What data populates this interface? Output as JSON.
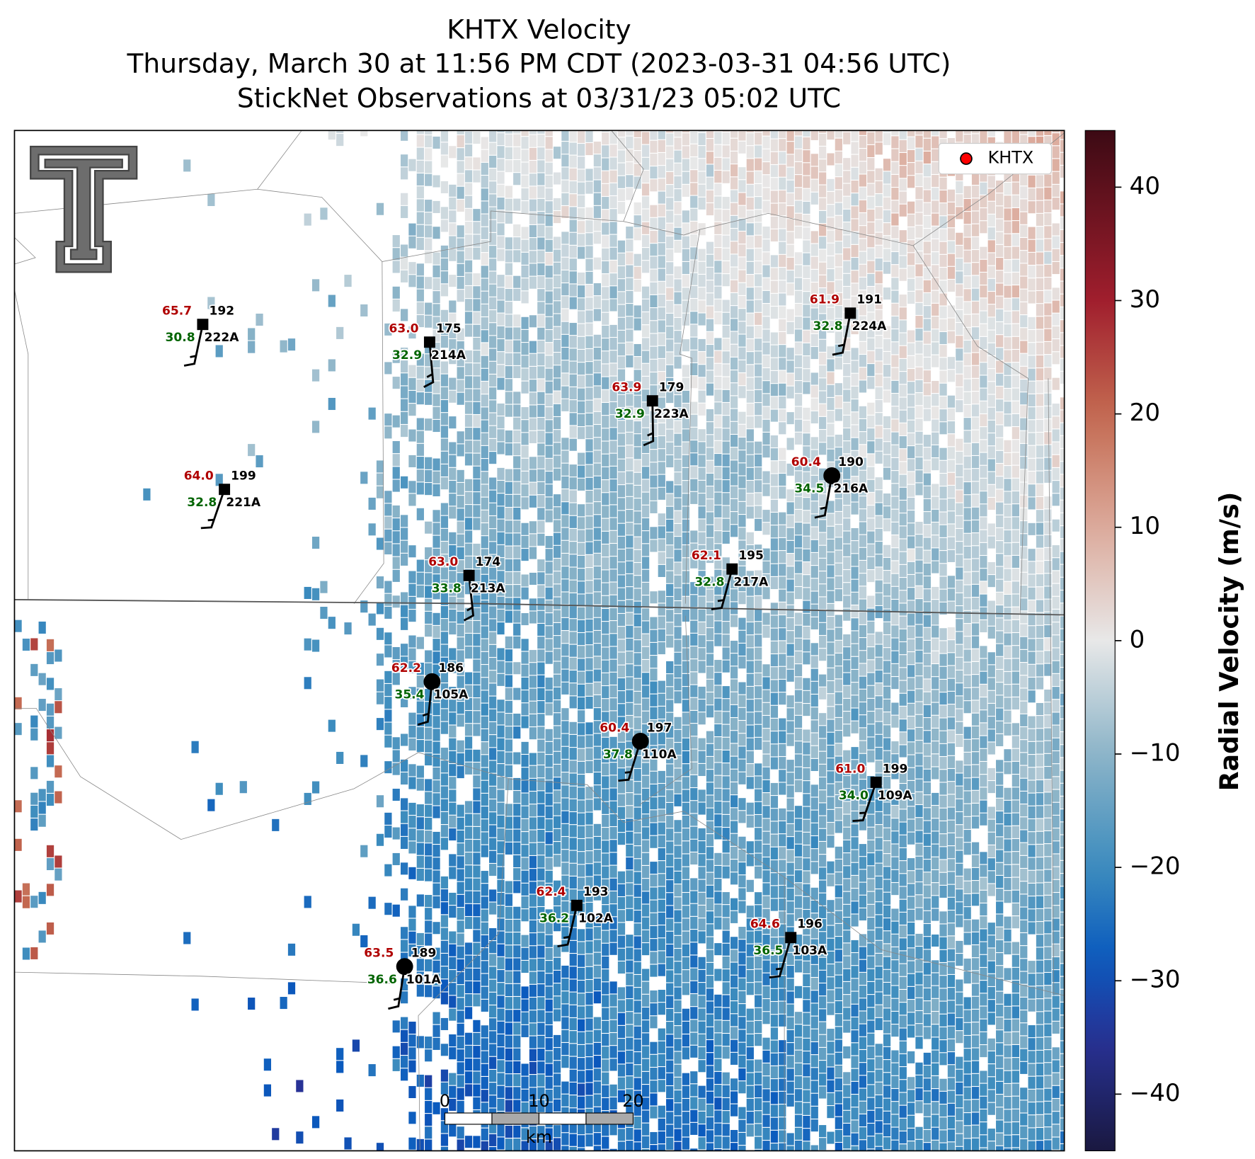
{
  "header": {
    "title": "KHTX Velocity",
    "subtitle_1": "Thursday, March 30 at 11:56 PM CDT (2023-03-31 04:56 UTC)",
    "subtitle_2": "StickNet Observations at 03/31/23 05:02 UTC"
  },
  "legend": {
    "label": "KHTX",
    "color": "#ff0000"
  },
  "colorbar": {
    "label": "Radial Velocity (m/s)",
    "lim": [
      -45,
      45
    ],
    "ticks": [
      {
        "value": -40,
        "label": "−40"
      },
      {
        "value": -30,
        "label": "−30"
      },
      {
        "value": -20,
        "label": "−20"
      },
      {
        "value": -10,
        "label": "−10"
      },
      0,
      10,
      20,
      30,
      40
    ]
  },
  "scale_bar": {
    "ticks": [
      0,
      10,
      20
    ],
    "unit": "km"
  },
  "stations": [
    {
      "id": "222A",
      "red_value": "65.7",
      "direction": 192,
      "green_value": "30.8"
    },
    {
      "id": "214A",
      "red_value": "63.0",
      "direction": 175,
      "green_value": "32.9"
    },
    {
      "id": "223A",
      "red_value": "63.9",
      "direction": 179,
      "green_value": "32.9"
    },
    {
      "id": "224A",
      "red_value": "61.9",
      "direction": 191,
      "green_value": "32.8"
    },
    {
      "id": "216A",
      "red_value": "60.4",
      "direction": 190,
      "green_value": "34.5"
    },
    {
      "id": "221A",
      "red_value": "64.0",
      "direction": 199,
      "green_value": "32.8"
    },
    {
      "id": "213A",
      "red_value": "63.0",
      "direction": 174,
      "green_value": "33.8"
    },
    {
      "id": "217A",
      "red_value": "62.1",
      "direction": 195,
      "green_value": "32.8"
    },
    {
      "id": "105A",
      "red_value": "62.2",
      "direction": 186,
      "green_value": "35.4"
    },
    {
      "id": "110A",
      "red_value": "60.4",
      "direction": 197,
      "green_value": "37.8"
    },
    {
      "id": "109A",
      "red_value": "61.0",
      "direction": 199,
      "green_value": "34.0"
    },
    {
      "id": "102A",
      "red_value": "62.4",
      "direction": 193,
      "green_value": "36.2"
    },
    {
      "id": "103A",
      "red_value": "64.6",
      "direction": 196,
      "green_value": "36.5"
    },
    {
      "id": "101A",
      "red_value": "63.5",
      "direction": 189,
      "green_value": "36.6"
    }
  ]
}
